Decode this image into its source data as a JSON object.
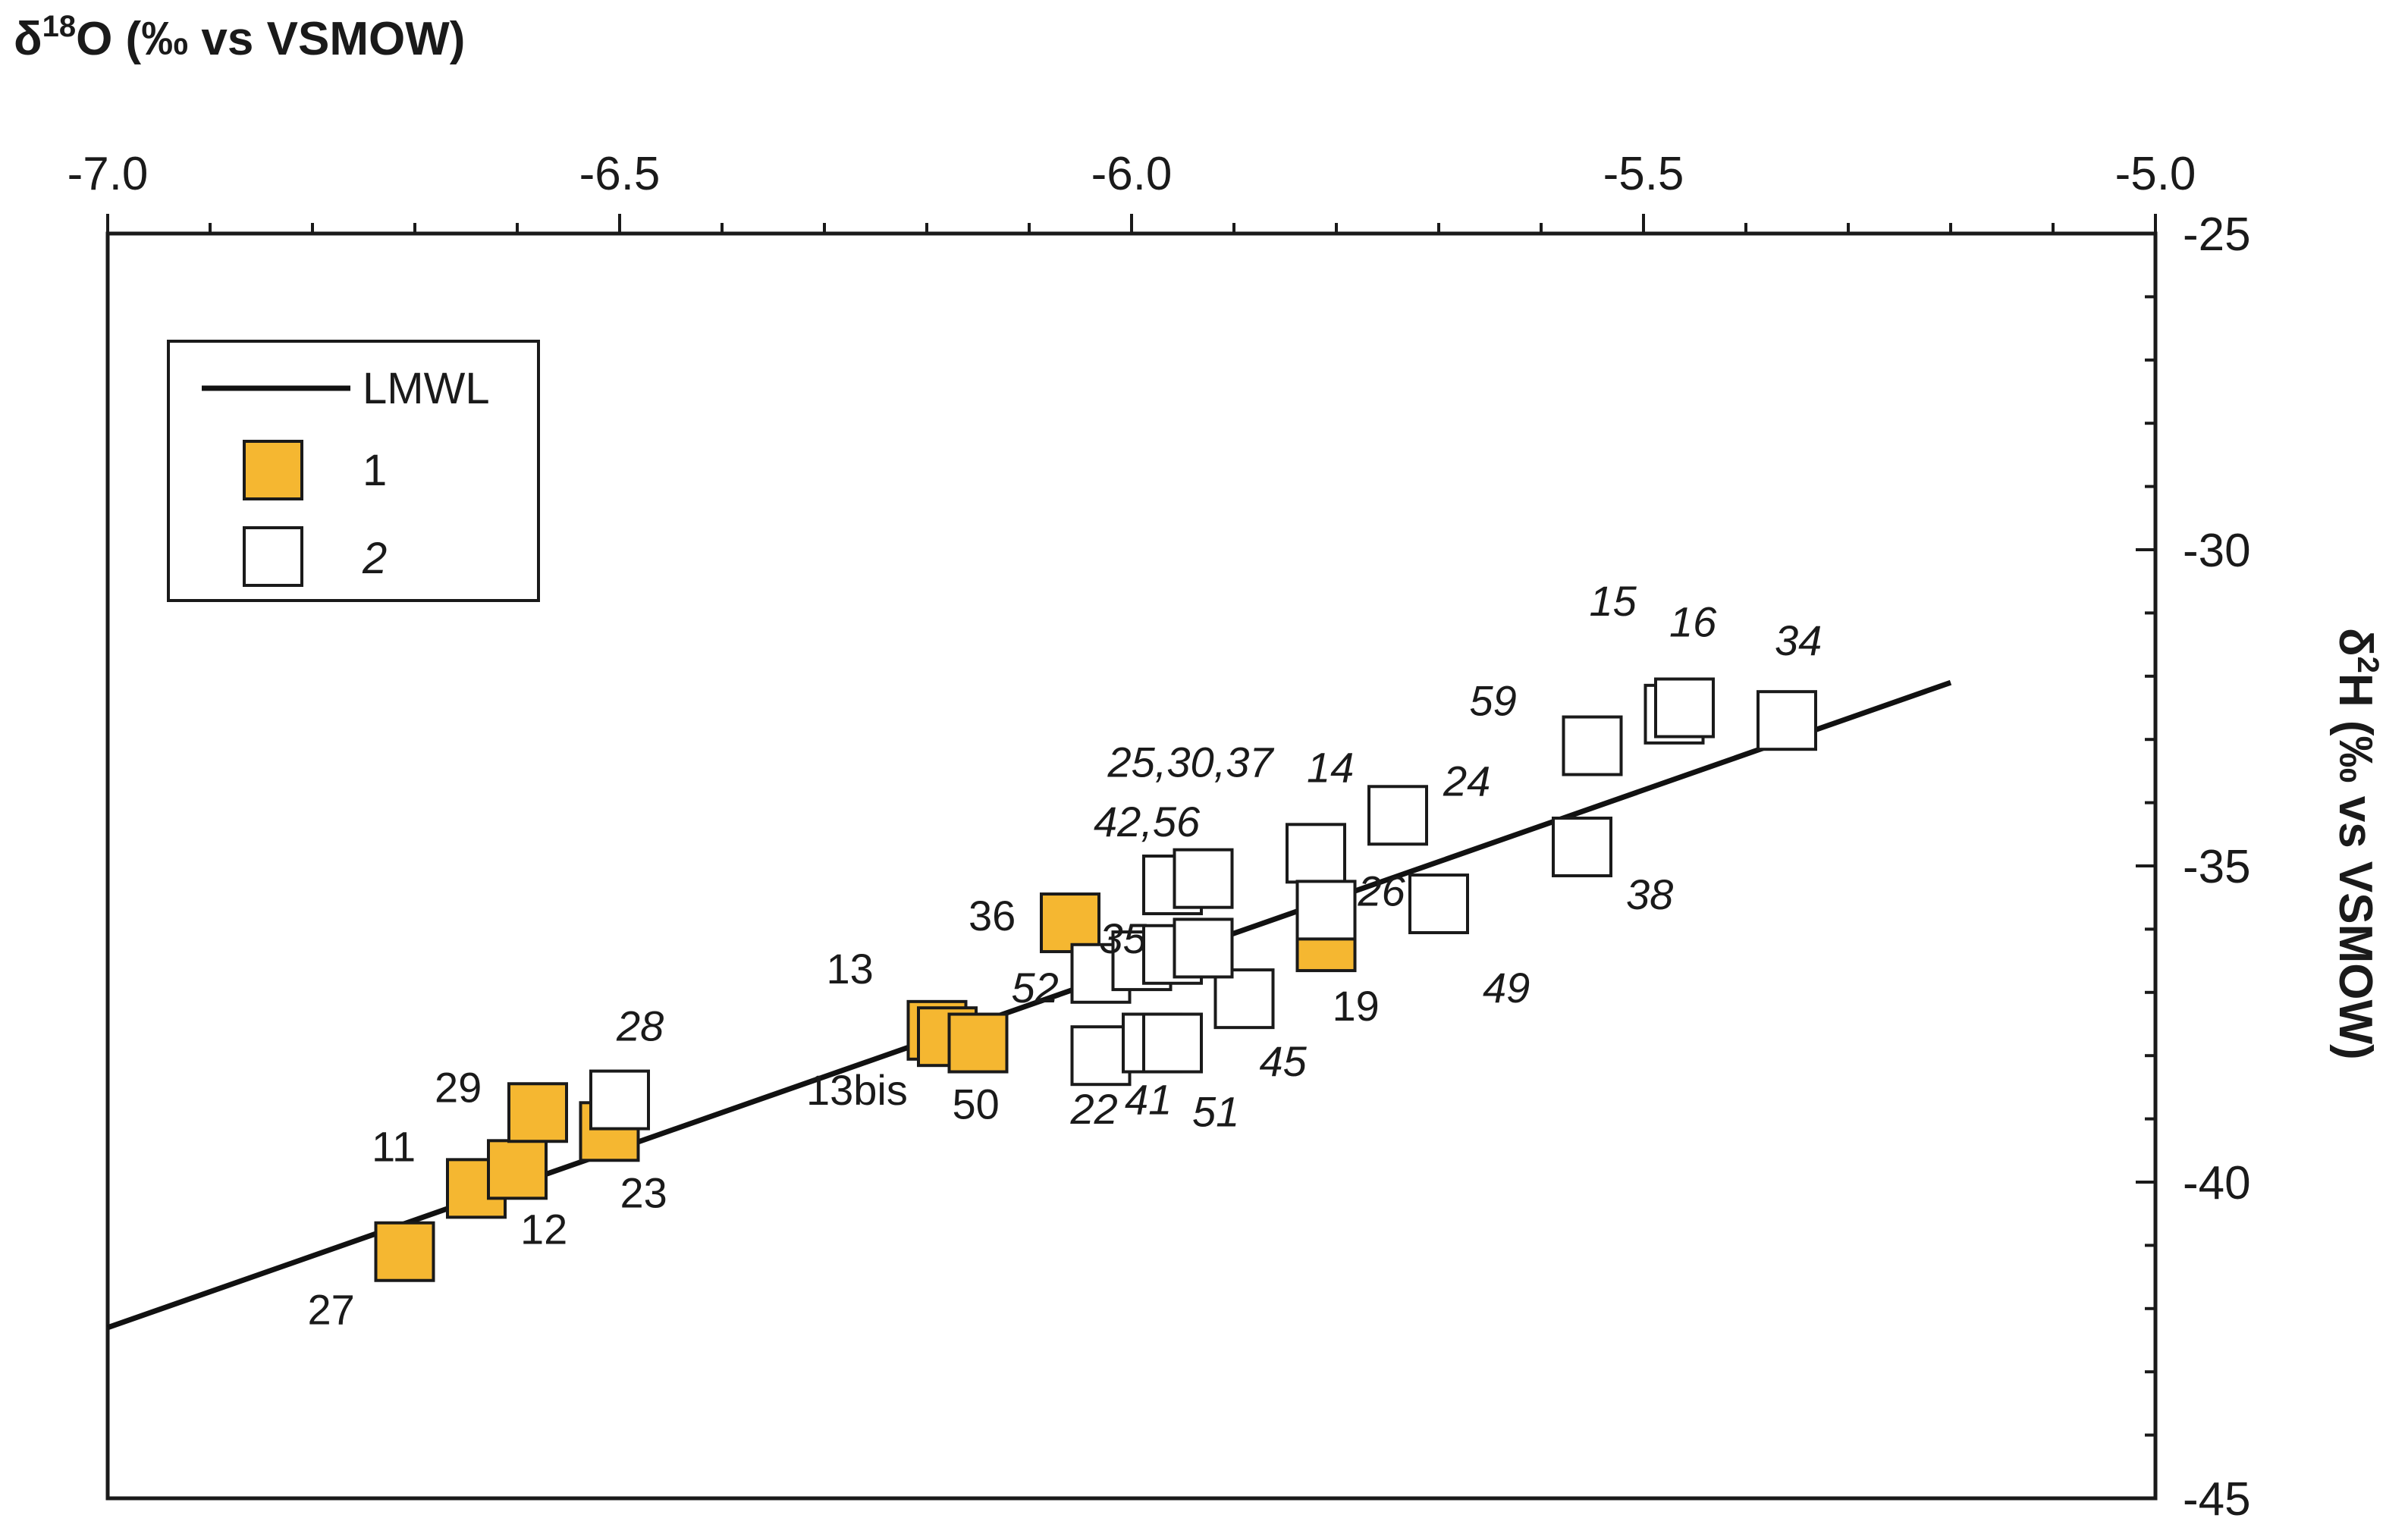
{
  "chart_data": {
    "type": "scatter",
    "x_axis": {
      "title_main": "δ",
      "title_sup": "18",
      "title_rest": "O (‰ vs VSMOW)",
      "range": [
        -7.0,
        -5.0
      ],
      "position": "top",
      "ticks": [
        "-7.0",
        "-6.5",
        "-6.0",
        "-5.5",
        "-5.0"
      ],
      "tick_values": [
        -7.0,
        -6.5,
        -6.0,
        -5.5,
        -5.0
      ],
      "minor_step": 0.1
    },
    "y_axis": {
      "title_main": "δ",
      "title_sup": "2",
      "title_rest": "H (‰ vs VSMOW)",
      "range": [
        -45,
        -25
      ],
      "position": "right",
      "ticks": [
        "-25",
        "-30",
        "-35",
        "-40",
        "-45"
      ],
      "tick_values": [
        -25,
        -30,
        -35,
        -40,
        -45
      ],
      "minor_step": 1
    },
    "grid": false,
    "legend": {
      "placement": "top-left",
      "entries": [
        {
          "kind": "line",
          "label": "LMWL"
        },
        {
          "kind": "marker",
          "label": "1",
          "series": "1"
        },
        {
          "kind": "marker",
          "label": "2",
          "series": "2"
        }
      ]
    },
    "line": {
      "name": "LMWL",
      "x": [
        -7.0,
        -5.2
      ],
      "y": [
        -42.3,
        -32.1
      ],
      "color": "#111111"
    },
    "series": [
      {
        "name": "1",
        "color": "#f5b731",
        "points": [
          {
            "x": -6.71,
            "y": -41.1,
            "label": "27"
          },
          {
            "x": -6.64,
            "y": -40.1,
            "label": "11"
          },
          {
            "x": -6.6,
            "y": -39.8,
            "label": "12"
          },
          {
            "x": -6.58,
            "y": -38.9,
            "label": "29"
          },
          {
            "x": -6.51,
            "y": -39.2,
            "label": "23"
          },
          {
            "x": -6.19,
            "y": -37.6,
            "label": "13"
          },
          {
            "x": -6.18,
            "y": -37.7,
            "label": "13bis"
          },
          {
            "x": -6.15,
            "y": -37.8,
            "label": "50"
          },
          {
            "x": -6.06,
            "y": -35.9,
            "label": "36"
          },
          {
            "x": -5.81,
            "y": -36.2,
            "label": "19"
          }
        ]
      },
      {
        "name": "2",
        "color": "#ffffff",
        "points": [
          {
            "x": -6.5,
            "y": -38.7,
            "label": "28"
          },
          {
            "x": -6.03,
            "y": -38.0,
            "label": "22"
          },
          {
            "x": -5.98,
            "y": -37.8,
            "label": "41"
          },
          {
            "x": -5.96,
            "y": -37.8,
            "label": "51"
          },
          {
            "x": -5.89,
            "y": -37.1,
            "label": "45"
          },
          {
            "x": -6.03,
            "y": -36.7,
            "label": "52"
          },
          {
            "x": -5.99,
            "y": -36.5,
            "label": "35"
          },
          {
            "x": -5.96,
            "y": -36.4,
            "label": ""
          },
          {
            "x": -5.93,
            "y": -36.3,
            "label": ""
          },
          {
            "x": -5.96,
            "y": -35.3,
            "label": "42,56"
          },
          {
            "x": -5.93,
            "y": -35.2,
            "label": "25,30,37"
          },
          {
            "x": -5.82,
            "y": -34.8,
            "label": "14"
          },
          {
            "x": -5.81,
            "y": -35.7,
            "label": "26"
          },
          {
            "x": -5.74,
            "y": -34.2,
            "label": "24"
          },
          {
            "x": -5.7,
            "y": -35.6,
            "label": "49"
          },
          {
            "x": -5.55,
            "y": -33.1,
            "label": "59"
          },
          {
            "x": -5.56,
            "y": -34.7,
            "label": "38"
          },
          {
            "x": -5.47,
            "y": -32.6,
            "label": "15"
          },
          {
            "x": -5.46,
            "y": -32.5,
            "label": "16"
          },
          {
            "x": -5.36,
            "y": -32.7,
            "label": "34"
          }
        ]
      }
    ]
  }
}
